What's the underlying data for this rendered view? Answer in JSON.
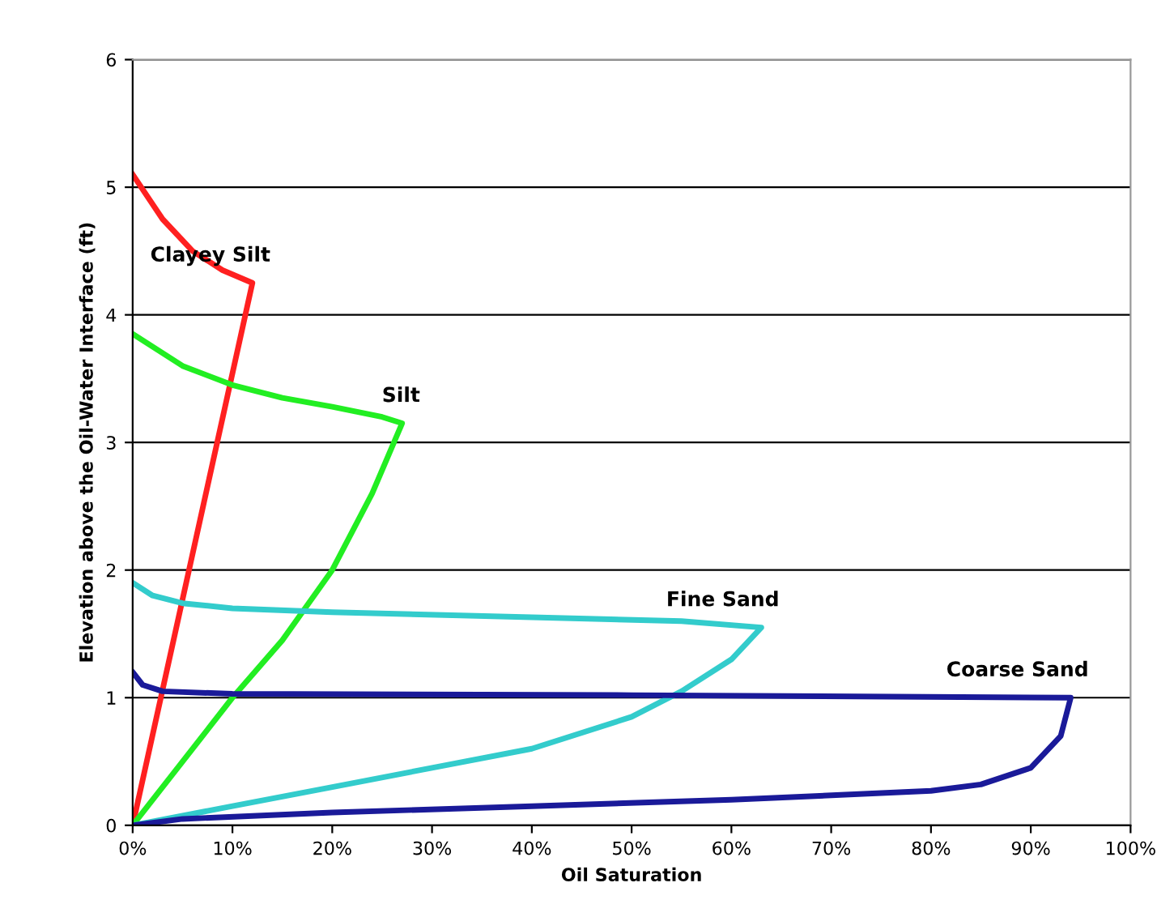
{
  "chart_data": {
    "type": "line",
    "xlabel": "Oil Saturation",
    "ylabel": "Elevation above the Oil-Water Interface (ft)",
    "series": [
      {
        "name": "Clayey Silt",
        "color": "#ff2020",
        "x": [
          0,
          3,
          6,
          9,
          12,
          0
        ],
        "values": [
          5.1,
          4.75,
          4.5,
          4.35,
          4.25,
          0
        ]
      },
      {
        "name": "Silt",
        "color": "#22ee22",
        "x": [
          0,
          5,
          10,
          15,
          20,
          25,
          27,
          24,
          20,
          15,
          10,
          5,
          0
        ],
        "values": [
          3.85,
          3.6,
          3.45,
          3.35,
          3.28,
          3.2,
          3.15,
          2.6,
          2.0,
          1.45,
          1.0,
          0.5,
          0
        ]
      },
      {
        "name": "Fine Sand",
        "color": "#33cccc",
        "x": [
          0,
          2,
          5,
          10,
          20,
          40,
          55,
          63,
          60,
          55,
          50,
          40,
          30,
          20,
          10,
          0
        ],
        "values": [
          1.9,
          1.8,
          1.74,
          1.7,
          1.67,
          1.63,
          1.6,
          1.55,
          1.3,
          1.05,
          0.85,
          0.6,
          0.45,
          0.3,
          0.15,
          0
        ]
      },
      {
        "name": "Coarse Sand",
        "color": "#1a1a99",
        "x": [
          0,
          1,
          3,
          10,
          50,
          94,
          93,
          90,
          85,
          80,
          60,
          40,
          20,
          5,
          0
        ],
        "values": [
          1.2,
          1.1,
          1.05,
          1.03,
          1.02,
          1.0,
          0.7,
          0.45,
          0.32,
          0.27,
          0.2,
          0.15,
          0.1,
          0.05,
          0
        ]
      }
    ],
    "xlim": [
      0,
      100
    ],
    "xticks": [
      {
        "value": 0,
        "label": "0%"
      },
      {
        "value": 10,
        "label": "10%"
      },
      {
        "value": 20,
        "label": "20%"
      },
      {
        "value": 30,
        "label": "30%"
      },
      {
        "value": 40,
        "label": "40%"
      },
      {
        "value": 50,
        "label": "50%"
      },
      {
        "value": 60,
        "label": "60%"
      },
      {
        "value": 70,
        "label": "70%"
      },
      {
        "value": 80,
        "label": "80%"
      },
      {
        "value": 90,
        "label": "90%"
      },
      {
        "value": 100,
        "label": "100%"
      }
    ],
    "ylim": [
      0,
      6
    ],
    "yticks": [
      0,
      1,
      2,
      3,
      4,
      5,
      6
    ],
    "grid": "y",
    "marker": "none",
    "line_style": "solid",
    "legend": false
  }
}
